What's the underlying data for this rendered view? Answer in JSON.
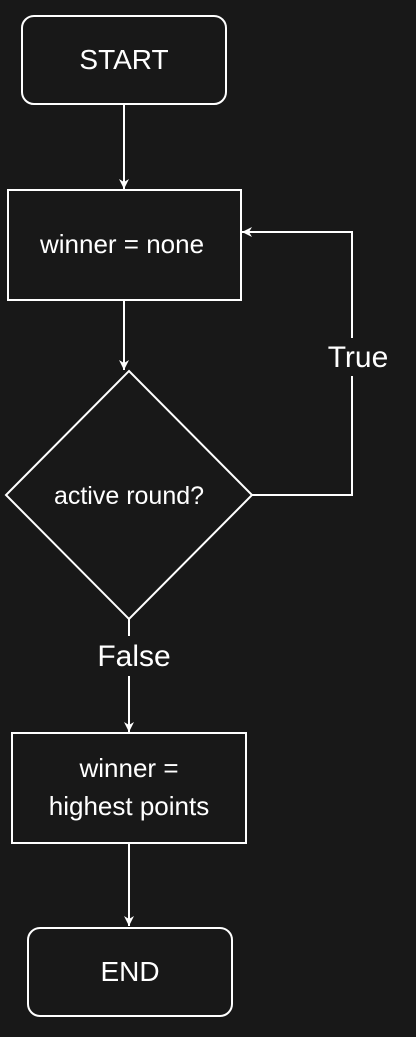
{
  "diagram": {
    "theme": {
      "background": "#181818",
      "stroke": "#ffffff",
      "text": "#ffffff"
    },
    "nodes": {
      "start": {
        "label": "START"
      },
      "init": {
        "label": "winner = none"
      },
      "decision": {
        "label": "active round?"
      },
      "assign": {
        "line1": "winner =",
        "line2": "highest points"
      },
      "end": {
        "label": "END"
      }
    },
    "edges": {
      "true_label": "True",
      "false_label": "False"
    }
  }
}
